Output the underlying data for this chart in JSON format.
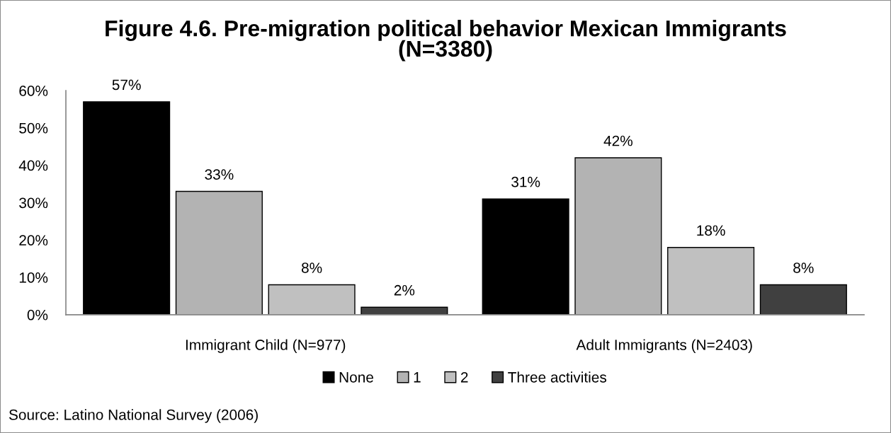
{
  "chart_data": {
    "type": "bar",
    "title": "Figure 4.6. Pre-migration political behavior Mexican Immigrants (N=3380)",
    "categories": [
      "Immigrant Child (N=977)",
      "Adult Immigrants (N=2403)"
    ],
    "series": [
      {
        "name": "None",
        "color": "#000000",
        "values": [
          57,
          31
        ],
        "value_labels": [
          "57%",
          "31%"
        ]
      },
      {
        "name": "1",
        "color": "#b3b3b3",
        "values": [
          33,
          42
        ],
        "value_labels": [
          "33%",
          "42%"
        ]
      },
      {
        "name": "2",
        "color": "#c0c0c0",
        "values": [
          8,
          18
        ],
        "value_labels": [
          "8%",
          "18%"
        ]
      },
      {
        "name": "Three activities",
        "color": "#404040",
        "values": [
          2,
          8
        ],
        "value_labels": [
          "2%",
          "8%"
        ]
      }
    ],
    "ylim": [
      0,
      60
    ],
    "yticks": [
      {
        "value": 0,
        "label": "0%"
      },
      {
        "value": 10,
        "label": "10%"
      },
      {
        "value": 20,
        "label": "20%"
      },
      {
        "value": 30,
        "label": "30%"
      },
      {
        "value": 40,
        "label": "40%"
      },
      {
        "value": 50,
        "label": "50%"
      },
      {
        "value": 60,
        "label": "60%"
      }
    ],
    "legend": "bottom",
    "annotations": [
      "Source: Latino National Survey (2006)"
    ]
  }
}
